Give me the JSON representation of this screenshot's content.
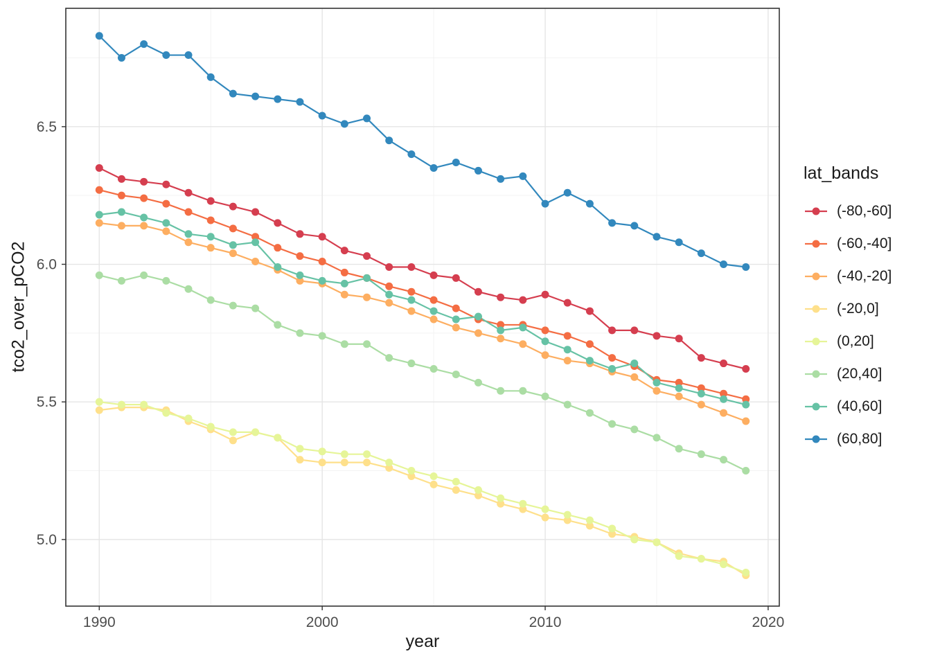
{
  "chart_data": {
    "type": "line",
    "title": "",
    "xlabel": "year",
    "ylabel": "tco2_over_pCO2",
    "legend_title": "lat_bands",
    "legend_position": "right",
    "grid": true,
    "x": [
      1990,
      1991,
      1992,
      1993,
      1994,
      1995,
      1996,
      1997,
      1998,
      1999,
      2000,
      2001,
      2002,
      2003,
      2004,
      2005,
      2006,
      2007,
      2008,
      2009,
      2010,
      2011,
      2012,
      2013,
      2014,
      2015,
      2016,
      2017,
      2018,
      2019
    ],
    "x_ticks": [
      1990,
      2000,
      2010,
      2020
    ],
    "x_tick_labels": [
      "1990",
      "2000",
      "2010",
      "2020"
    ],
    "y_ticks": [
      5.0,
      5.5,
      6.0,
      6.5
    ],
    "y_tick_labels": [
      "5.0",
      "5.5",
      "6.0",
      "6.5"
    ],
    "x_minor_ticks": [
      1995,
      2005,
      2015
    ],
    "y_minor_ticks": [
      5.25,
      5.75,
      6.25,
      6.75
    ],
    "xlim": [
      1988.5,
      2020.5
    ],
    "ylim": [
      4.758,
      6.93
    ],
    "series": [
      {
        "name": "(-80,-60]",
        "color": "#D53E4F",
        "values": [
          6.35,
          6.31,
          6.3,
          6.29,
          6.26,
          6.23,
          6.21,
          6.19,
          6.15,
          6.11,
          6.1,
          6.05,
          6.03,
          5.99,
          5.99,
          5.96,
          5.95,
          5.9,
          5.88,
          5.87,
          5.89,
          5.86,
          5.83,
          5.76,
          5.76,
          5.74,
          5.73,
          5.66,
          5.64,
          5.62
        ]
      },
      {
        "name": "(-60,-40]",
        "color": "#F46D43",
        "values": [
          6.27,
          6.25,
          6.24,
          6.22,
          6.19,
          6.16,
          6.13,
          6.1,
          6.06,
          6.03,
          6.01,
          5.97,
          5.95,
          5.92,
          5.9,
          5.87,
          5.84,
          5.8,
          5.78,
          5.78,
          5.76,
          5.74,
          5.71,
          5.66,
          5.63,
          5.58,
          5.57,
          5.55,
          5.53,
          5.51
        ]
      },
      {
        "name": "(-40,-20]",
        "color": "#FDAE61",
        "values": [
          6.15,
          6.14,
          6.14,
          6.12,
          6.08,
          6.06,
          6.04,
          6.01,
          5.98,
          5.94,
          5.93,
          5.89,
          5.88,
          5.86,
          5.83,
          5.8,
          5.77,
          5.75,
          5.73,
          5.71,
          5.67,
          5.65,
          5.64,
          5.61,
          5.59,
          5.54,
          5.52,
          5.49,
          5.46,
          5.43
        ]
      },
      {
        "name": "(-20,0]",
        "color": "#FEE08B",
        "values": [
          5.47,
          5.48,
          5.48,
          5.47,
          5.43,
          5.4,
          5.36,
          5.39,
          5.37,
          5.29,
          5.28,
          5.28,
          5.28,
          5.26,
          5.23,
          5.2,
          5.18,
          5.16,
          5.13,
          5.11,
          5.08,
          5.07,
          5.05,
          5.02,
          5.01,
          4.99,
          4.95,
          4.93,
          4.92,
          4.87
        ]
      },
      {
        "name": "(0,20]",
        "color": "#E6F598",
        "values": [
          5.5,
          5.49,
          5.49,
          5.46,
          5.44,
          5.41,
          5.39,
          5.39,
          5.37,
          5.33,
          5.32,
          5.31,
          5.31,
          5.28,
          5.25,
          5.23,
          5.21,
          5.18,
          5.15,
          5.13,
          5.11,
          5.09,
          5.07,
          5.04,
          5.0,
          4.99,
          4.94,
          4.93,
          4.91,
          4.88
        ]
      },
      {
        "name": "(20,40]",
        "color": "#ABDDA4",
        "values": [
          5.96,
          5.94,
          5.96,
          5.94,
          5.91,
          5.87,
          5.85,
          5.84,
          5.78,
          5.75,
          5.74,
          5.71,
          5.71,
          5.66,
          5.64,
          5.62,
          5.6,
          5.57,
          5.54,
          5.54,
          5.52,
          5.49,
          5.46,
          5.42,
          5.4,
          5.37,
          5.33,
          5.31,
          5.29,
          5.25
        ]
      },
      {
        "name": "(40,60]",
        "color": "#66C2A5",
        "values": [
          6.18,
          6.19,
          6.17,
          6.15,
          6.11,
          6.1,
          6.07,
          6.08,
          5.99,
          5.96,
          5.94,
          5.93,
          5.95,
          5.89,
          5.87,
          5.83,
          5.8,
          5.81,
          5.76,
          5.77,
          5.72,
          5.69,
          5.65,
          5.62,
          5.64,
          5.57,
          5.55,
          5.53,
          5.51,
          5.49
        ]
      },
      {
        "name": "(60,80]",
        "color": "#3288BD",
        "values": [
          6.83,
          6.75,
          6.8,
          6.76,
          6.76,
          6.68,
          6.62,
          6.61,
          6.6,
          6.59,
          6.54,
          6.51,
          6.53,
          6.45,
          6.4,
          6.35,
          6.37,
          6.34,
          6.31,
          6.32,
          6.22,
          6.26,
          6.22,
          6.15,
          6.14,
          6.1,
          6.08,
          6.04,
          6.0,
          5.99
        ]
      }
    ],
    "style": {
      "panel_border_color": "#333333",
      "major_grid_color": "#e5e5e5",
      "minor_grid_color": "#f3f3f3",
      "tick_color": "#333333",
      "tick_label_color": "#4d4d4d",
      "point_radius": 5.5,
      "line_width": 2.2
    }
  }
}
